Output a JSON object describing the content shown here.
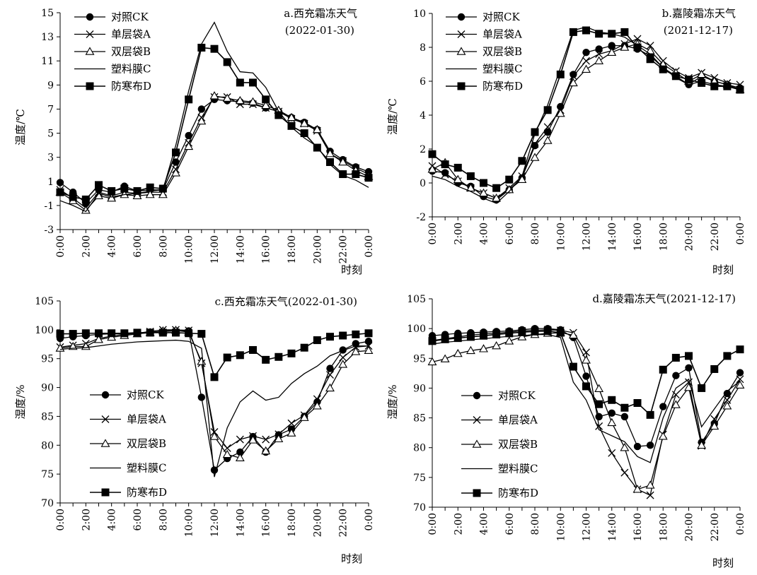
{
  "chart_data": [
    {
      "type": "line",
      "title": "a.西充霜冻天气",
      "subtitle": "(2022-01-30)",
      "xlabel": "时刻",
      "ylabel": "温度/℃",
      "ylim": [
        -3,
        15
      ],
      "yticks": [
        -3,
        -1,
        1,
        3,
        5,
        7,
        9,
        11,
        13,
        15
      ],
      "xticks": [
        "0:00",
        "2:00",
        "4:00",
        "6:00",
        "8:00",
        "10:00",
        "12:00",
        "14:00",
        "16:00",
        "18:00",
        "20:00",
        "22:00",
        "0:00"
      ],
      "x": [
        0,
        1,
        2,
        3,
        4,
        5,
        6,
        7,
        8,
        9,
        10,
        11,
        12,
        13,
        14,
        15,
        16,
        17,
        18,
        19,
        20,
        21,
        22,
        23,
        24
      ],
      "series": [
        {
          "name": "对照CK",
          "values": [
            0.9,
            0.1,
            -0.8,
            0.3,
            0.1,
            0.6,
            0.2,
            0.3,
            0.3,
            2.6,
            4.8,
            7.0,
            7.8,
            7.7,
            7.6,
            7.5,
            7.1,
            6.8,
            6.3,
            5.9,
            5.3,
            3.5,
            2.8,
            2.2,
            1.8
          ]
        },
        {
          "name": "单层袋A",
          "values": [
            0.3,
            -0.4,
            -1.2,
            0.1,
            -0.2,
            0.1,
            0.0,
            0.1,
            0.1,
            2.0,
            4.2,
            6.3,
            8.0,
            8.0,
            7.4,
            7.4,
            7.1,
            6.8,
            6.2,
            5.8,
            5.2,
            3.3,
            2.7,
            2.1,
            1.6
          ]
        },
        {
          "name": "双层袋B",
          "values": [
            0.1,
            -0.6,
            -1.4,
            -0.2,
            -0.4,
            -0.1,
            -0.2,
            -0.1,
            -0.1,
            1.7,
            3.9,
            6.0,
            8.1,
            7.9,
            7.7,
            7.6,
            7.3,
            6.9,
            6.3,
            5.8,
            5.3,
            3.3,
            2.6,
            1.9,
            1.4
          ]
        },
        {
          "name": "塑料膜C",
          "values": [
            -0.6,
            -1.0,
            -1.5,
            0.0,
            -0.3,
            -0.1,
            0.0,
            0.2,
            0.3,
            4.0,
            8.5,
            12.4,
            14.2,
            11.8,
            10.1,
            10.0,
            8.8,
            6.8,
            5.5,
            4.6,
            3.9,
            2.4,
            1.5,
            1.1,
            0.5
          ]
        },
        {
          "name": "防寒布D",
          "values": [
            0.1,
            -0.3,
            -0.5,
            0.7,
            0.2,
            0.4,
            0.2,
            0.5,
            0.4,
            3.4,
            7.8,
            12.1,
            12.0,
            10.9,
            9.2,
            9.2,
            7.8,
            6.5,
            5.6,
            5.0,
            3.8,
            2.6,
            1.6,
            1.6,
            1.3
          ]
        }
      ]
    },
    {
      "type": "line",
      "title": "b.嘉陵霜冻天气",
      "subtitle": "(2021-12-17)",
      "xlabel": "时刻",
      "ylabel": "温度/℃",
      "ylim": [
        -2,
        10
      ],
      "yticks": [
        -2,
        0,
        2,
        4,
        6,
        8,
        10
      ],
      "xticks": [
        "0:00",
        "2:00",
        "4:00",
        "6:00",
        "8:00",
        "10:00",
        "12:00",
        "14:00",
        "16:00",
        "18:00",
        "20:00",
        "22:00",
        "0:00"
      ],
      "x": [
        0,
        1,
        2,
        3,
        4,
        5,
        6,
        7,
        8,
        9,
        10,
        11,
        12,
        13,
        14,
        15,
        16,
        17,
        18,
        19,
        20,
        21,
        22,
        23,
        24
      ],
      "series": [
        {
          "name": "对照CK",
          "values": [
            0.7,
            0.6,
            0.0,
            -0.2,
            -0.8,
            -1.0,
            -0.4,
            0.3,
            2.2,
            3.0,
            4.5,
            6.4,
            7.7,
            7.9,
            8.1,
            8.1,
            7.9,
            7.5,
            6.8,
            6.3,
            5.8,
            6.3,
            6.0,
            5.8,
            5.6
          ]
        },
        {
          "name": "单层袋A",
          "values": [
            1.0,
            0.5,
            0.1,
            -0.3,
            -0.6,
            -0.9,
            -0.3,
            0.4,
            2.3,
            3.3,
            4.3,
            6.3,
            7.2,
            7.6,
            7.8,
            8.2,
            8.5,
            8.1,
            7.2,
            6.6,
            6.2,
            6.5,
            6.2,
            5.9,
            5.8
          ]
        },
        {
          "name": "双层袋B",
          "values": [
            0.8,
            1.2,
            0.2,
            -0.3,
            -0.6,
            -0.9,
            -0.4,
            0.2,
            1.5,
            2.5,
            4.1,
            5.9,
            6.7,
            7.2,
            7.7,
            8.0,
            8.2,
            7.8,
            7.0,
            6.5,
            6.0,
            6.4,
            6.0,
            5.8,
            5.5
          ]
        },
        {
          "name": "塑料膜C",
          "values": [
            0.4,
            0.2,
            -0.2,
            -0.5,
            -0.9,
            -1.2,
            -0.5,
            0.4,
            2.9,
            4.6,
            6.8,
            9.0,
            9.2,
            8.9,
            8.8,
            8.6,
            8.1,
            7.6,
            6.8,
            6.2,
            5.8,
            6.0,
            5.8,
            5.7,
            5.5
          ]
        },
        {
          "name": "防寒布D",
          "values": [
            1.7,
            1.1,
            0.9,
            0.4,
            0.0,
            -0.3,
            0.2,
            1.3,
            3.0,
            4.3,
            6.4,
            8.9,
            9.0,
            8.8,
            8.8,
            8.9,
            8.0,
            7.3,
            6.7,
            6.3,
            6.1,
            5.9,
            5.7,
            5.7,
            5.5
          ]
        }
      ]
    },
    {
      "type": "line",
      "title": "c.西充霜冻天气(2022-01-30)",
      "subtitle": "",
      "xlabel": "时刻",
      "ylabel": "湿度/%",
      "ylim": [
        70,
        105
      ],
      "yticks": [
        70,
        75,
        80,
        85,
        90,
        95,
        100,
        105
      ],
      "xticks": [
        "0:00",
        "2:00",
        "4:00",
        "6:00",
        "8:00",
        "10:00",
        "12:00",
        "14:00",
        "16:00",
        "18:00",
        "20:00",
        "22:00",
        "0:00"
      ],
      "x": [
        0,
        1,
        2,
        3,
        4,
        5,
        6,
        7,
        8,
        9,
        10,
        11,
        12,
        13,
        14,
        15,
        16,
        17,
        18,
        19,
        20,
        21,
        22,
        23,
        24
      ],
      "series": [
        {
          "name": "对照CK",
          "values": [
            98.5,
            98.8,
            99.0,
            99.2,
            99.3,
            99.3,
            99.4,
            99.6,
            99.7,
            99.8,
            99.8,
            88.3,
            75.7,
            77.7,
            78.8,
            81.5,
            78.8,
            81.8,
            82.8,
            85.0,
            87.5,
            93.3,
            96.5,
            97.6,
            98.0
          ]
        },
        {
          "name": "单层袋A",
          "values": [
            97.0,
            97.3,
            97.6,
            98.5,
            98.9,
            99.2,
            99.4,
            99.7,
            100.0,
            100.0,
            99.9,
            94.2,
            82.3,
            79.5,
            81.0,
            81.6,
            81.0,
            81.9,
            83.8,
            85.2,
            88.0,
            92.2,
            95.2,
            97.0,
            97.2
          ]
        },
        {
          "name": "双层袋B",
          "values": [
            96.8,
            97.1,
            97.1,
            98.3,
            98.7,
            99.0,
            99.3,
            99.5,
            99.8,
            99.9,
            99.6,
            94.5,
            81.5,
            78.4,
            77.8,
            80.9,
            79.0,
            81.1,
            82.1,
            84.8,
            86.8,
            89.9,
            94.0,
            96.2,
            96.4
          ]
        },
        {
          "name": "塑料膜C",
          "values": [
            96.6,
            96.8,
            96.9,
            97.2,
            97.5,
            97.7,
            97.9,
            98.0,
            98.1,
            98.2,
            98.0,
            96.8,
            74.5,
            83.0,
            87.5,
            89.4,
            87.8,
            88.3,
            90.7,
            92.4,
            93.7,
            95.5,
            96.4,
            97.2,
            97.2
          ]
        },
        {
          "name": "防寒布D",
          "values": [
            99.3,
            99.3,
            99.4,
            99.4,
            99.4,
            99.4,
            99.5,
            99.5,
            99.5,
            99.5,
            99.4,
            99.3,
            91.8,
            95.2,
            95.6,
            96.5,
            94.8,
            95.3,
            95.9,
            96.9,
            98.2,
            98.8,
            99.0,
            99.2,
            99.4
          ]
        }
      ]
    },
    {
      "type": "line",
      "title": "d.嘉陵霜冻天气(2021-12-17)",
      "subtitle": "",
      "xlabel": "时刻",
      "ylabel": "湿度/%",
      "ylim": [
        70,
        105
      ],
      "yticks": [
        70,
        75,
        80,
        85,
        90,
        95,
        100,
        105
      ],
      "xticks": [
        "0:00",
        "2:00",
        "4:00",
        "6:00",
        "8:00",
        "10:00",
        "12:00",
        "14:00",
        "16:00",
        "18:00",
        "20:00",
        "22:00",
        "0:00"
      ],
      "x": [
        0,
        1,
        2,
        3,
        4,
        5,
        6,
        7,
        8,
        9,
        10,
        11,
        12,
        13,
        14,
        15,
        16,
        17,
        18,
        19,
        20,
        21,
        22,
        23,
        24
      ],
      "series": [
        {
          "name": "对照CK",
          "values": [
            98.8,
            99.0,
            99.2,
            99.3,
            99.4,
            99.5,
            99.6,
            99.8,
            100.0,
            100.0,
            99.8,
            98.5,
            92.0,
            85.2,
            85.8,
            85.2,
            80.2,
            80.4,
            86.9,
            92.1,
            93.4,
            80.9,
            84.0,
            89.1,
            92.6
          ]
        },
        {
          "name": "单层袋A",
          "values": [
            98.0,
            98.3,
            98.6,
            98.9,
            99.1,
            99.2,
            99.4,
            99.6,
            99.7,
            99.8,
            99.7,
            99.3,
            96.0,
            83.6,
            79.1,
            75.8,
            73.0,
            72.0,
            82.2,
            88.9,
            91.0,
            80.3,
            84.8,
            88.0,
            91.5
          ]
        },
        {
          "name": "双层袋B",
          "values": [
            94.4,
            94.9,
            95.8,
            96.3,
            96.6,
            97.1,
            97.9,
            98.6,
            99.0,
            99.2,
            99.3,
            98.9,
            94.7,
            89.9,
            84.2,
            80.0,
            73.0,
            73.7,
            81.9,
            87.2,
            90.1,
            80.4,
            83.6,
            87.0,
            90.5
          ]
        },
        {
          "name": "塑料膜C",
          "values": [
            97.4,
            97.7,
            97.9,
            98.1,
            98.3,
            98.5,
            98.7,
            98.8,
            99.0,
            99.0,
            98.5,
            91.0,
            88.0,
            83.0,
            82.0,
            81.0,
            78.5,
            77.5,
            85.0,
            90.0,
            91.5,
            83.5,
            86.5,
            89.5,
            91.2
          ]
        },
        {
          "name": "防寒布D",
          "values": [
            97.9,
            98.2,
            98.4,
            98.6,
            98.8,
            99.0,
            99.2,
            99.4,
            99.5,
            99.6,
            99.3,
            93.6,
            90.3,
            87.3,
            88.0,
            86.7,
            87.5,
            85.5,
            93.1,
            95.1,
            95.4,
            90.0,
            93.2,
            95.4,
            96.5
          ]
        }
      ]
    }
  ],
  "legend": [
    "对照CK",
    "单层袋A",
    "双层袋B",
    "塑料膜C",
    "防寒布D"
  ]
}
